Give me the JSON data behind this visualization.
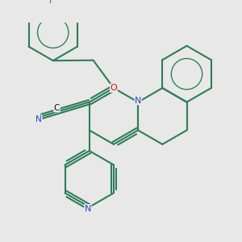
{
  "bg_color": "#e8e8e8",
  "bond_color": "#2d7d5a",
  "bond_width": 1.5,
  "N_color": "#2244cc",
  "O_color": "#cc1111",
  "F_color": "#cc22cc",
  "label_fs": 7.5,
  "dpi": 100,
  "xlim": [
    0,
    3
  ],
  "ylim": [
    0,
    3
  ]
}
